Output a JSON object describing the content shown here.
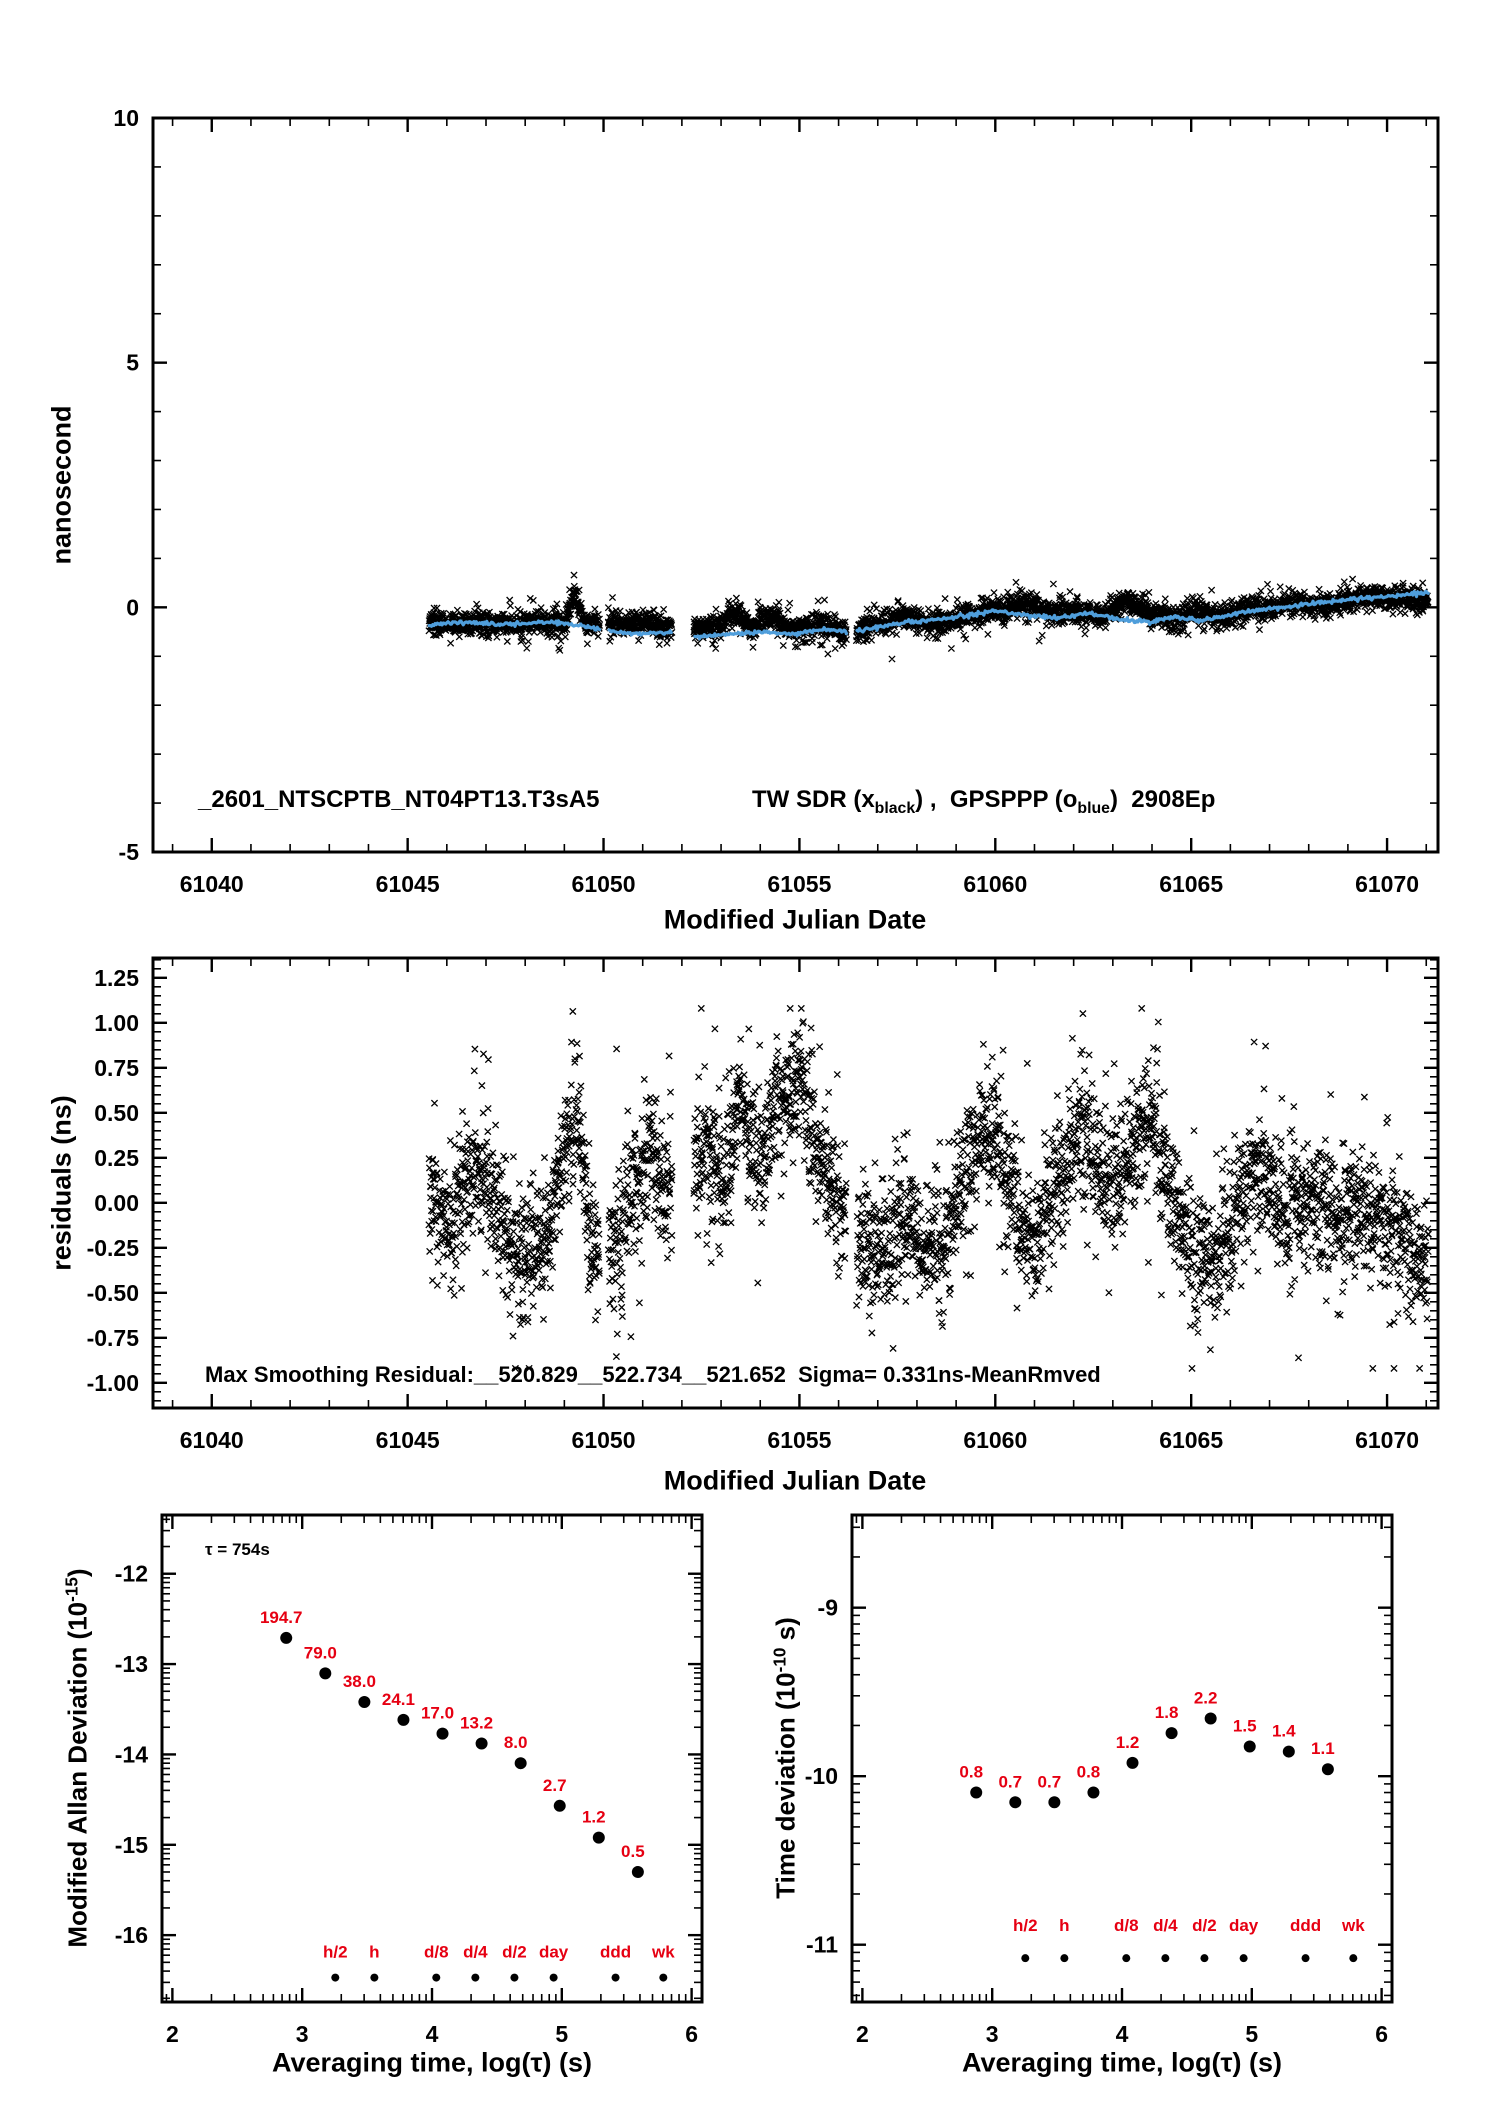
{
  "colors": {
    "black": "#000000",
    "red": "#e60012",
    "blue": "#4f9edb"
  },
  "chart_data": [
    {
      "id": "time-transfer",
      "type": "scatter",
      "title": "",
      "ylabel": "nanosecond",
      "xlabel": "Modified Julian Date",
      "xlim": [
        61038.5,
        61071.3
      ],
      "ylim": [
        -5,
        10
      ],
      "xticks": [
        61040,
        61045,
        61050,
        61055,
        61060,
        61065,
        61070
      ],
      "xtick_labels": [
        "61040",
        "61045",
        "61050",
        "61055",
        "61060",
        "61065",
        "61070"
      ],
      "yticks": [
        -5,
        0,
        5,
        10
      ],
      "ytick_labels": [
        "-5",
        "0",
        "5",
        "10"
      ],
      "xminor": {
        "type": "linear",
        "step": 1
      },
      "yminor": {
        "type": "linear",
        "step": 1
      },
      "grid": false,
      "annotation": "_2601_NTSCPTB_NT04PT13.T3sA5",
      "legend": {
        "p1": "TW SDR (x",
        "sub1": "black",
        "p2": ") ,  GPSPPP (o",
        "sub2": "blue",
        "p3": ")  2908Ep"
      },
      "series": [
        {
          "name": "TW SDR",
          "style": "x-marker",
          "color": "#000000",
          "x_range": [
            61045.55,
            61071.05
          ],
          "step": 0.012,
          "per_step": 2,
          "noise_sd": 0.11,
          "clip": [
            -1.15,
            0.95
          ],
          "gaps": [
            [
              61049.9,
              61050.12
            ],
            [
              61051.75,
              61052.3
            ],
            [
              61056.2,
              61056.45
            ]
          ],
          "profile": [
            [
              61045.6,
              -0.28
            ],
            [
              61046.2,
              -0.38
            ],
            [
              61046.8,
              -0.3
            ],
            [
              61047.6,
              -0.35
            ],
            [
              61048.4,
              -0.28
            ],
            [
              61049.0,
              -0.35
            ],
            [
              61049.25,
              0.35
            ],
            [
              61049.5,
              -0.3
            ],
            [
              61050.3,
              -0.35
            ],
            [
              61051.0,
              -0.3
            ],
            [
              61051.7,
              -0.4
            ],
            [
              61052.4,
              -0.45
            ],
            [
              61053.0,
              -0.35
            ],
            [
              61053.4,
              -0.1
            ],
            [
              61053.8,
              -0.4
            ],
            [
              61054.3,
              -0.15
            ],
            [
              61054.8,
              -0.45
            ],
            [
              61055.5,
              -0.35
            ],
            [
              61056.1,
              -0.5
            ],
            [
              61056.6,
              -0.45
            ],
            [
              61057.2,
              -0.3
            ],
            [
              61057.7,
              -0.15
            ],
            [
              61058.3,
              -0.35
            ],
            [
              61059.0,
              -0.25
            ],
            [
              61059.6,
              -0.1
            ],
            [
              61060.2,
              -0.05
            ],
            [
              61060.9,
              0.1
            ],
            [
              61061.5,
              -0.15
            ],
            [
              61062.1,
              -0.05
            ],
            [
              61062.7,
              -0.2
            ],
            [
              61063.3,
              0.15
            ],
            [
              61063.9,
              -0.1
            ],
            [
              61064.5,
              -0.25
            ],
            [
              61065.1,
              -0.1
            ],
            [
              61065.8,
              -0.2
            ],
            [
              61066.4,
              -0.05
            ],
            [
              61067.0,
              0.0
            ],
            [
              61067.7,
              0.1
            ],
            [
              61068.3,
              0.05
            ],
            [
              61069.0,
              0.15
            ],
            [
              61069.6,
              0.25
            ],
            [
              61070.2,
              0.15
            ],
            [
              61070.7,
              0.2
            ],
            [
              61071.05,
              0.1
            ]
          ]
        },
        {
          "name": "GPSPPP",
          "style": "line",
          "color": "#4f9edb",
          "x_range": [
            61045.55,
            61071.05
          ],
          "step": 0.03,
          "noise_sd": 0.02,
          "gaps": [
            [
              61049.9,
              61050.12
            ],
            [
              61051.75,
              61052.3
            ],
            [
              61056.2,
              61056.45
            ]
          ],
          "profile": [
            [
              61045.6,
              -0.35
            ],
            [
              61046.5,
              -0.3
            ],
            [
              61047.5,
              -0.35
            ],
            [
              61048.5,
              -0.3
            ],
            [
              61049.3,
              -0.35
            ],
            [
              61050.2,
              -0.5
            ],
            [
              61051.0,
              -0.55
            ],
            [
              61051.7,
              -0.5
            ],
            [
              61052.4,
              -0.6
            ],
            [
              61053.2,
              -0.55
            ],
            [
              61054.0,
              -0.5
            ],
            [
              61054.8,
              -0.55
            ],
            [
              61055.6,
              -0.45
            ],
            [
              61056.3,
              -0.5
            ],
            [
              61057.0,
              -0.4
            ],
            [
              61057.8,
              -0.3
            ],
            [
              61058.6,
              -0.25
            ],
            [
              61059.4,
              -0.15
            ],
            [
              61060.0,
              -0.08
            ],
            [
              61060.8,
              -0.15
            ],
            [
              61061.6,
              -0.22
            ],
            [
              61062.4,
              -0.12
            ],
            [
              61063.2,
              -0.25
            ],
            [
              61064.0,
              -0.3
            ],
            [
              61064.6,
              -0.18
            ],
            [
              61065.2,
              -0.28
            ],
            [
              61066.0,
              -0.15
            ],
            [
              61066.8,
              -0.05
            ],
            [
              61067.6,
              0.02
            ],
            [
              61068.4,
              0.1
            ],
            [
              61069.2,
              0.18
            ],
            [
              61070.0,
              0.22
            ],
            [
              61070.6,
              0.28
            ],
            [
              61071.05,
              0.3
            ]
          ]
        }
      ]
    },
    {
      "id": "residuals",
      "type": "scatter",
      "title": "",
      "ylabel": "residuals (ns)",
      "xlabel": "Modified Julian Date",
      "xlim": [
        61038.5,
        61071.3
      ],
      "ylim": [
        -1.14,
        1.36
      ],
      "xticks": [
        61040,
        61045,
        61050,
        61055,
        61060,
        61065,
        61070
      ],
      "xtick_labels": [
        "61040",
        "61045",
        "61050",
        "61055",
        "61060",
        "61065",
        "61070"
      ],
      "yticks": [
        -1.0,
        -0.75,
        -0.5,
        -0.25,
        0.0,
        0.25,
        0.5,
        0.75,
        1.0,
        1.25
      ],
      "ytick_labels": [
        "-1.00",
        "-0.75",
        "-0.50",
        "-0.25",
        "0.00",
        "0.25",
        "0.50",
        "0.75",
        "1.00",
        "1.25"
      ],
      "xminor": {
        "type": "linear",
        "step": 1
      },
      "yminor": {
        "type": "linear",
        "step": 0.05
      },
      "grid": false,
      "annotation": "Max Smoothing Residual:__520.829__522.734__521.652  Sigma= 0.331ns-MeanRmved",
      "series": [
        {
          "name": "smoothing residuals",
          "style": "x-marker",
          "color": "#000000",
          "x_range": [
            61045.55,
            61071.05
          ],
          "step": 0.02,
          "per_step": 3,
          "noise_sd": 0.17,
          "clip": [
            -0.92,
            1.08
          ],
          "gaps": [
            [
              61049.9,
              61050.12
            ],
            [
              61051.75,
              61052.3
            ],
            [
              61056.2,
              61056.45
            ]
          ],
          "profile": [
            [
              61045.6,
              0.05
            ],
            [
              61046.0,
              -0.15
            ],
            [
              61046.5,
              0.1
            ],
            [
              61047.0,
              0.2
            ],
            [
              61047.5,
              -0.25
            ],
            [
              61048.0,
              -0.35
            ],
            [
              61048.5,
              -0.2
            ],
            [
              61049.0,
              0.3
            ],
            [
              61049.3,
              0.55
            ],
            [
              61049.7,
              -0.25
            ],
            [
              61050.2,
              -0.3
            ],
            [
              61050.7,
              0.05
            ],
            [
              61051.2,
              0.25
            ],
            [
              61051.7,
              0.1
            ],
            [
              61052.5,
              0.35
            ],
            [
              61053.0,
              0.15
            ],
            [
              61053.5,
              0.55
            ],
            [
              61054.0,
              0.2
            ],
            [
              61054.5,
              0.6
            ],
            [
              61055.0,
              0.7
            ],
            [
              61055.4,
              0.3
            ],
            [
              61055.9,
              0.05
            ],
            [
              61056.5,
              -0.25
            ],
            [
              61057.0,
              -0.3
            ],
            [
              61057.6,
              -0.1
            ],
            [
              61058.2,
              -0.3
            ],
            [
              61058.8,
              -0.15
            ],
            [
              61059.4,
              0.3
            ],
            [
              61059.9,
              0.4
            ],
            [
              61060.4,
              0.05
            ],
            [
              61061.0,
              -0.2
            ],
            [
              61061.6,
              0.1
            ],
            [
              61062.2,
              0.4
            ],
            [
              61062.8,
              0.05
            ],
            [
              61063.4,
              0.25
            ],
            [
              61064.0,
              0.5
            ],
            [
              61064.5,
              0.05
            ],
            [
              61065.0,
              -0.25
            ],
            [
              61065.6,
              -0.35
            ],
            [
              61066.2,
              -0.05
            ],
            [
              61066.8,
              0.2
            ],
            [
              61067.4,
              -0.1
            ],
            [
              61068.0,
              0.05
            ],
            [
              61068.6,
              -0.15
            ],
            [
              61069.2,
              0.0
            ],
            [
              61069.8,
              -0.1
            ],
            [
              61070.4,
              -0.25
            ],
            [
              61071.05,
              -0.35
            ]
          ]
        }
      ]
    },
    {
      "id": "mdev",
      "type": "scatter",
      "title": "",
      "ylabel_parts": {
        "p1": "Modified Allan Deviation (10",
        "sup": "-15",
        "p2": ")"
      },
      "xlabel": "Averaging time, log(τ) (s)",
      "tau_annotation": "τ = 754s",
      "xlim": [
        1.92,
        6.08
      ],
      "ylim": [
        -16.74,
        -11.35
      ],
      "xticks": [
        2,
        3,
        4,
        5,
        6
      ],
      "xtick_labels": [
        "2",
        "3",
        "4",
        "5",
        "6"
      ],
      "yticks": [
        -16,
        -15,
        -14,
        -13,
        -12
      ],
      "ytick_labels": [
        "-16",
        "-15",
        "-14",
        "-13",
        "-12"
      ],
      "xminor": {
        "type": "log"
      },
      "yminor": {
        "type": "log"
      },
      "grid": false,
      "points": {
        "log_tau": [
          2.877,
          3.178,
          3.479,
          3.78,
          4.081,
          4.382,
          4.683,
          4.984,
          5.285,
          5.586
        ],
        "values": [
          194.7,
          79.0,
          38.0,
          24.1,
          17.0,
          13.2,
          8.0,
          2.7,
          1.2,
          0.5
        ],
        "labels": [
          "194.7",
          "79.0",
          "38.0",
          "24.1",
          "17.0",
          "13.2",
          "8.0",
          "2.7",
          "1.2",
          "0.5"
        ],
        "unit_exp": -15
      },
      "tau_marks": {
        "labels": [
          "h/2",
          "h",
          "d/8",
          "d/4",
          "d/2",
          "day",
          "ddd",
          "wk"
        ],
        "log_tau": [
          3.255,
          3.556,
          4.033,
          4.334,
          4.635,
          4.937,
          5.414,
          5.782
        ],
        "label_y": -16.25,
        "dot_y": -16.47
      }
    },
    {
      "id": "tdev",
      "type": "scatter",
      "title": "",
      "ylabel_parts": {
        "p1": "Time deviation (10",
        "sup": "-10",
        "p2": " s)"
      },
      "xlabel": "Averaging time, log(τ) (s)",
      "xlim": [
        1.92,
        6.08
      ],
      "ylim": [
        -11.34,
        -8.45
      ],
      "xticks": [
        2,
        3,
        4,
        5,
        6
      ],
      "xtick_labels": [
        "2",
        "3",
        "4",
        "5",
        "6"
      ],
      "yticks": [
        -11,
        -10,
        -9
      ],
      "ytick_labels": [
        "-11",
        "-10",
        "-9"
      ],
      "xminor": {
        "type": "log"
      },
      "yminor": {
        "type": "log"
      },
      "grid": false,
      "points": {
        "log_tau": [
          2.877,
          3.178,
          3.479,
          3.78,
          4.081,
          4.382,
          4.683,
          4.984,
          5.285,
          5.586
        ],
        "values": [
          0.8,
          0.7,
          0.7,
          0.8,
          1.2,
          1.8,
          2.2,
          1.5,
          1.4,
          1.1
        ],
        "labels": [
          "0.8",
          "0.7",
          "0.7",
          "0.8",
          "1.2",
          "1.8",
          "2.2",
          "1.5",
          "1.4",
          "1.1"
        ],
        "unit_exp": -10
      },
      "tau_marks": {
        "labels": [
          "h/2",
          "h",
          "d/8",
          "d/4",
          "d/2",
          "day",
          "ddd",
          "wk"
        ],
        "log_tau": [
          3.255,
          3.556,
          4.033,
          4.334,
          4.635,
          4.937,
          5.414,
          5.782
        ],
        "label_y": -10.92,
        "dot_y": -11.08
      }
    }
  ]
}
